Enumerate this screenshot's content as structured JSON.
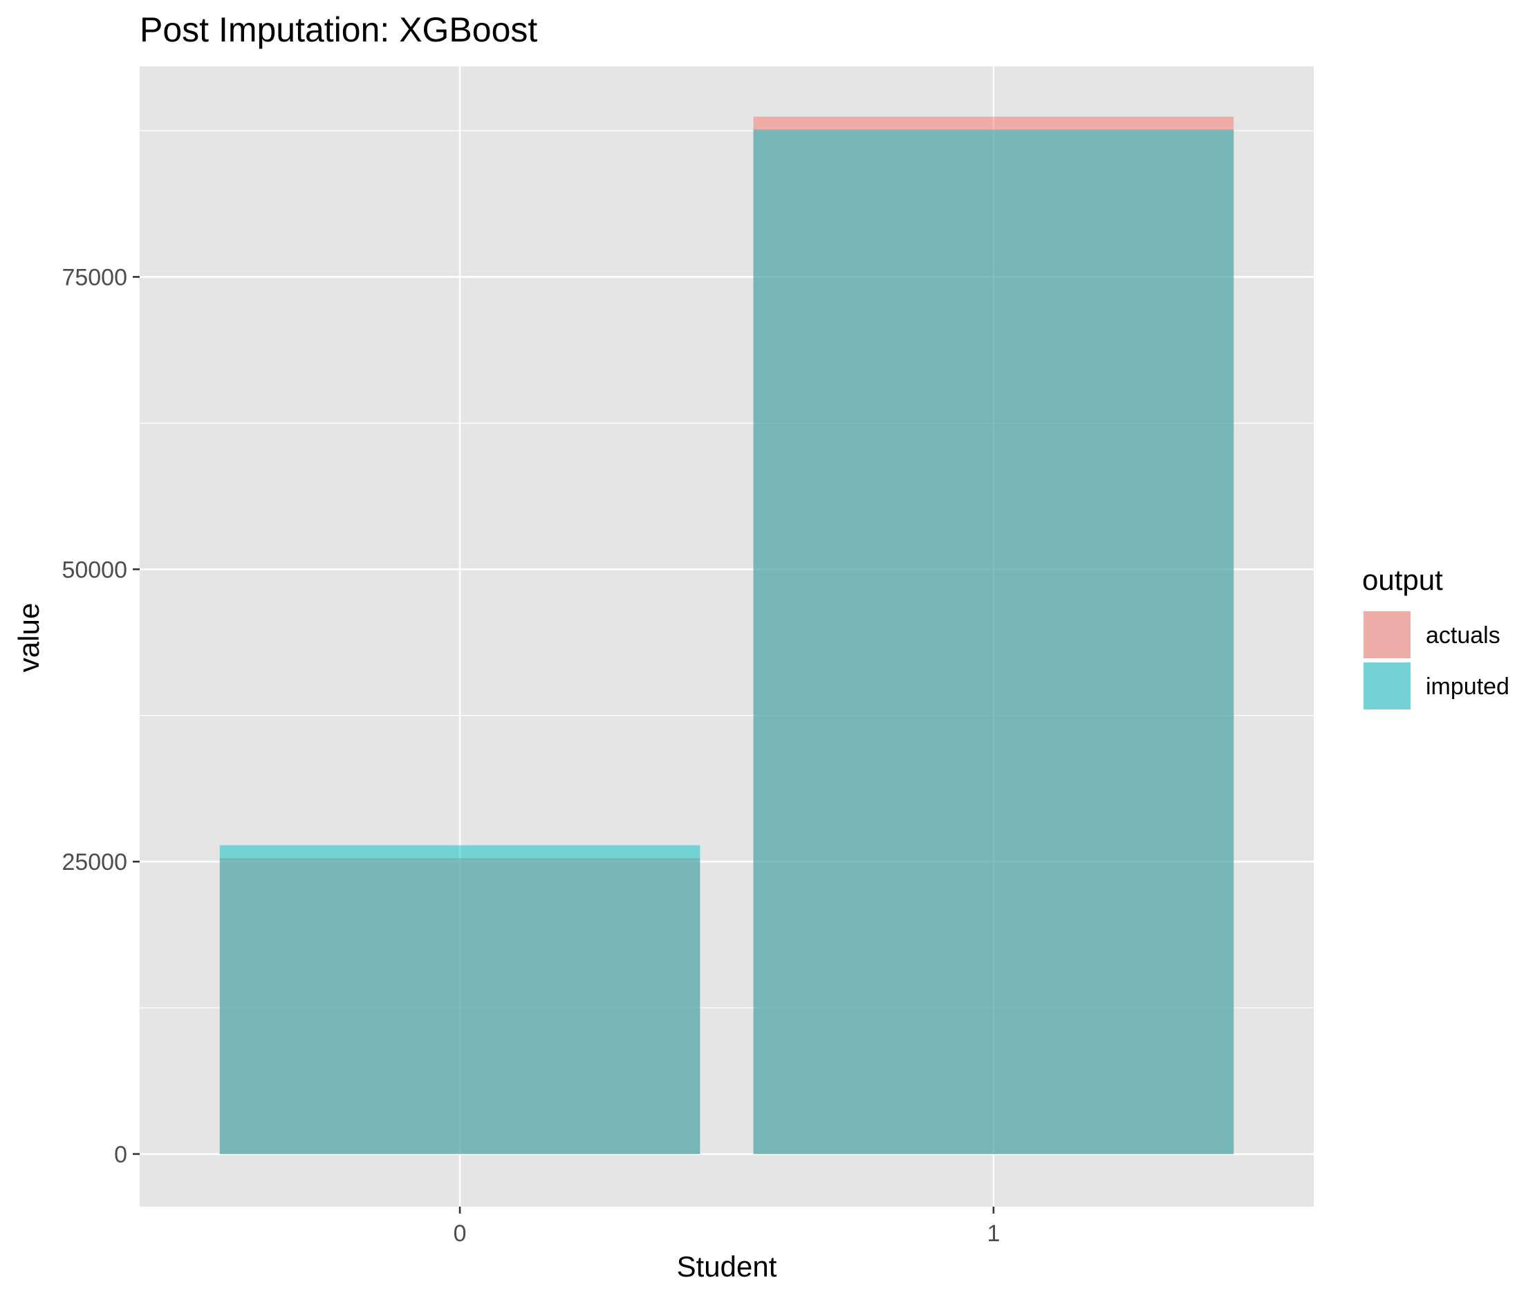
{
  "chart_data": {
    "type": "bar",
    "title": "Post Imputation: XGBoost",
    "xlabel": "Student",
    "ylabel": "value",
    "categories": [
      "0",
      "1"
    ],
    "series": [
      {
        "name": "actuals",
        "values": [
          25300,
          88700
        ],
        "color": "#F8766D"
      },
      {
        "name": "imputed",
        "values": [
          26400,
          87600
        ],
        "color": "#00BFC4"
      }
    ],
    "bar_opacity": 0.5,
    "ylim": [
      -4500,
      93000
    ],
    "yticks": [
      0,
      25000,
      50000,
      75000
    ],
    "ytick_labels": [
      "0",
      "25000",
      "50000",
      "75000"
    ],
    "y_minor_gridlines": [
      12500,
      37500,
      62500,
      87500
    ],
    "grid": true,
    "legend": {
      "title": "output",
      "position": "right",
      "items": [
        "actuals",
        "imputed"
      ]
    },
    "colors": {
      "panel_background": "#E5E5E5",
      "grid": "#FFFFFF",
      "text": "#000000",
      "tick_text": "#4D4D4D",
      "tick_mark": "#333333"
    }
  }
}
